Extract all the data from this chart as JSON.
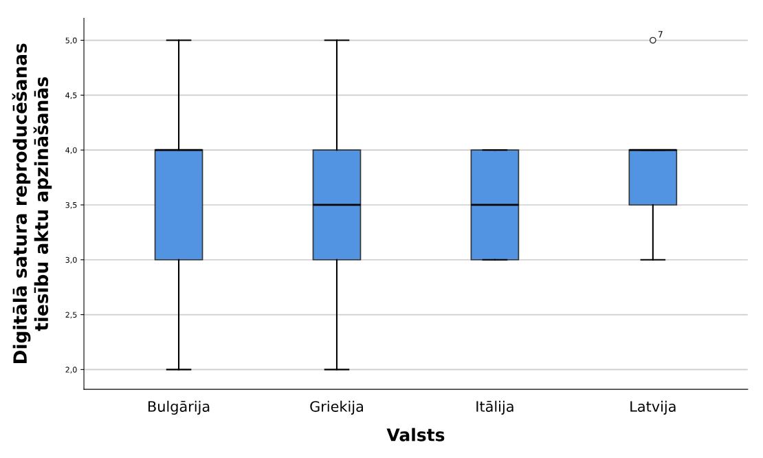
{
  "chart_data": {
    "type": "box",
    "xlabel": "Valsts",
    "ylabel": "Digitālā satura reproducēšanas\ntiesību aktu apzināšanās",
    "categories": [
      "Bulgārija",
      "Griekija",
      "Itālija",
      "Latvija"
    ],
    "color": "#5294e2",
    "boxes": [
      {
        "low": 2.0,
        "q1": 3.0,
        "median": 4.0,
        "q3": 4.0,
        "high": 5.0
      },
      {
        "low": 2.0,
        "q1": 3.0,
        "median": 3.5,
        "q3": 4.0,
        "high": 5.0
      },
      {
        "low": 3.0,
        "q1": 3.0,
        "median": 3.5,
        "q3": 4.0,
        "high": 4.0
      },
      {
        "low": 3.0,
        "q1": 3.5,
        "median": 4.0,
        "q3": 4.0,
        "high": 4.0,
        "outliers": [
          5.0
        ]
      }
    ],
    "annotations": [
      "7"
    ],
    "ylim": [
      1.82,
      5.2
    ],
    "yticks": [
      {
        "value": 2.0,
        "label": "2,0"
      },
      {
        "value": 2.5,
        "label": "2,5"
      },
      {
        "value": 3.0,
        "label": "3,0"
      },
      {
        "value": 3.5,
        "label": "3,5"
      },
      {
        "value": 4.0,
        "label": "4,0"
      },
      {
        "value": 4.5,
        "label": "4,5"
      },
      {
        "value": 5.0,
        "label": "5,0"
      }
    ],
    "grid": "y"
  }
}
